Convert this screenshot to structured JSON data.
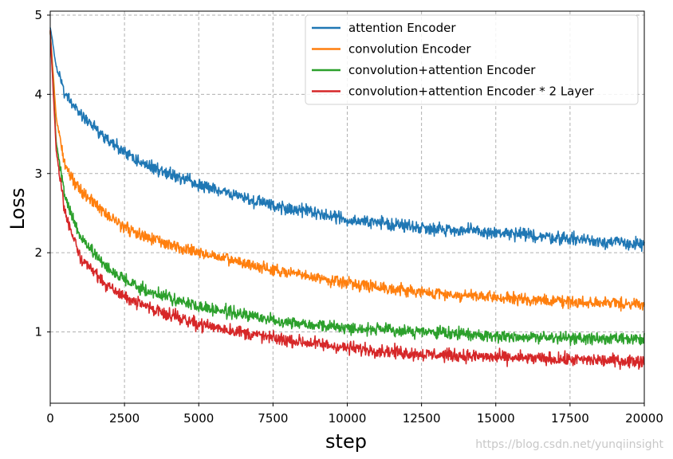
{
  "chart_data": {
    "type": "line",
    "xlabel": "step",
    "ylabel": "Loss",
    "xlim": [
      0,
      20000
    ],
    "ylim": [
      0.1,
      5.05
    ],
    "xticks": [
      0,
      2500,
      5000,
      7500,
      10000,
      12500,
      15000,
      17500,
      20000
    ],
    "yticks": [
      1,
      2,
      3,
      4,
      5
    ],
    "grid": true,
    "legend_position": "top-right",
    "series": [
      {
        "name": "attention Encoder",
        "color": "#1f77b4",
        "noise": 0.055,
        "x": [
          0,
          200,
          500,
          1000,
          2000,
          3000,
          5000,
          7500,
          10000,
          12500,
          15000,
          17500,
          20000
        ],
        "y": [
          4.85,
          4.35,
          4.0,
          3.75,
          3.4,
          3.15,
          2.85,
          2.6,
          2.42,
          2.32,
          2.25,
          2.18,
          2.1
        ]
      },
      {
        "name": "convolution Encoder",
        "color": "#ff7f0e",
        "noise": 0.05,
        "x": [
          0,
          200,
          500,
          1000,
          2000,
          3000,
          5000,
          7500,
          10000,
          12500,
          15000,
          17500,
          20000
        ],
        "y": [
          4.8,
          3.7,
          3.1,
          2.8,
          2.45,
          2.22,
          2.0,
          1.78,
          1.62,
          1.5,
          1.43,
          1.38,
          1.35
        ]
      },
      {
        "name": "convolution+attention Encoder",
        "color": "#2ca02c",
        "noise": 0.05,
        "x": [
          0,
          200,
          500,
          1000,
          2000,
          3000,
          5000,
          7500,
          10000,
          12500,
          15000,
          17500,
          20000
        ],
        "y": [
          4.8,
          3.4,
          2.7,
          2.2,
          1.78,
          1.55,
          1.32,
          1.15,
          1.05,
          1.0,
          0.95,
          0.92,
          0.9
        ]
      },
      {
        "name": "convolution+attention Encoder * 2 Layer",
        "color": "#d62728",
        "noise": 0.055,
        "x": [
          0,
          200,
          500,
          1000,
          2000,
          3000,
          5000,
          7500,
          10000,
          12500,
          15000,
          17500,
          20000
        ],
        "y": [
          4.8,
          3.3,
          2.5,
          1.95,
          1.55,
          1.35,
          1.1,
          0.92,
          0.8,
          0.72,
          0.68,
          0.65,
          0.63
        ]
      }
    ]
  },
  "watermark": "https://blog.csdn.net/yunqiinsight"
}
